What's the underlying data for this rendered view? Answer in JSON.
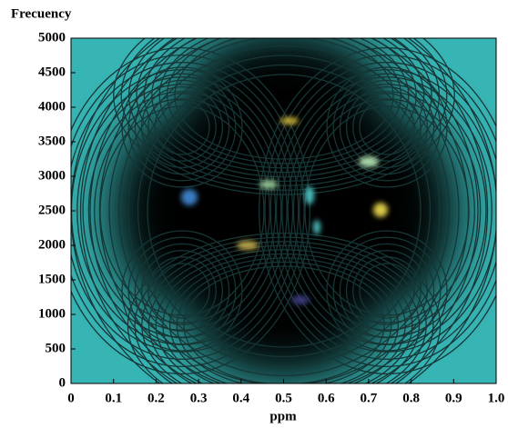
{
  "chart_data": {
    "type": "contour",
    "y_label": "Frecuency",
    "x_label": "ppm",
    "xlim": [
      0,
      1
    ],
    "ylim": [
      0,
      5000
    ],
    "xticks": [
      0,
      0.1,
      0.2,
      0.3,
      0.4,
      0.5,
      0.6,
      0.7,
      0.8,
      0.9,
      {
        "value": 1,
        "label": "1.0"
      }
    ],
    "yticks": [
      0,
      500,
      1000,
      1500,
      2000,
      2500,
      3000,
      3500,
      4000,
      4500,
      5000
    ],
    "background_color": "#37b4b4"
  }
}
